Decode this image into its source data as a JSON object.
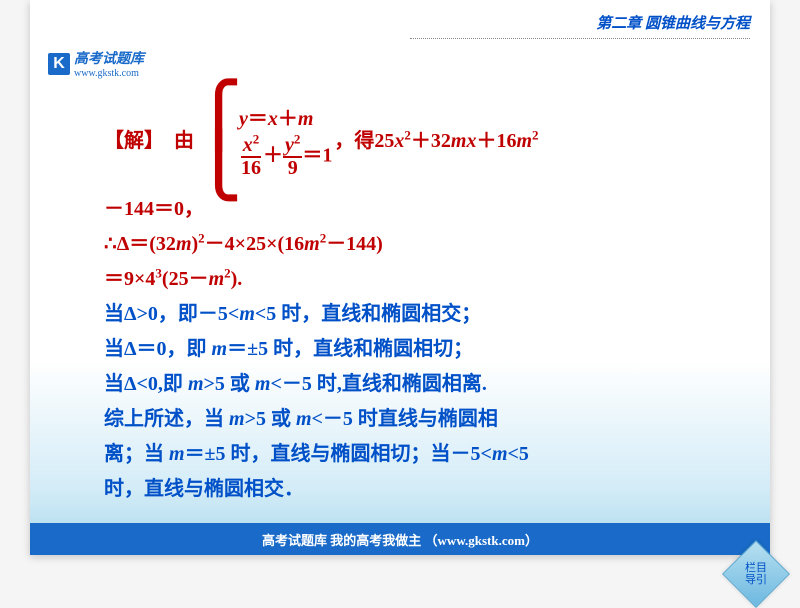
{
  "chapter": {
    "title": "第二章  圆锥曲线与方程",
    "color": "#0050c8"
  },
  "logo": {
    "letter": "K",
    "cn": "高考试题库",
    "url": "www.gkstk.com",
    "color": "#1a6bc9"
  },
  "footer": {
    "text": "高考试题库 我的高考我做主 （www.gkstk.com）",
    "bg": "#1a6bc9"
  },
  "nav": {
    "line1": "栏目",
    "line2": "导引"
  },
  "solution": {
    "label": "【解】",
    "you": "  由",
    "sys_line1_pre": "y＝x＋m",
    "sys_frac1_num": "x",
    "sys_frac1_den": "16",
    "sys_plus": "＋",
    "sys_frac2_num": "y",
    "sys_frac2_den": "9",
    "sys_eq1": "＝1",
    "de": "，得 ",
    "rhs1a": "25",
    "rhs1b": "x",
    "rhs1c": "＋32",
    "rhs1d": "mx",
    "rhs1e": "＋16",
    "rhs1f": "m",
    "line2": "－144＝0，",
    "line3a": "∴Δ＝(32",
    "line3b": "m",
    "line3c": ")",
    "line3d": "－4×25×(16",
    "line3e": "m",
    "line3f": "－144)",
    "line4a": "＝9×4",
    "line4b": "(25－",
    "line4c": "m",
    "line4d": ").",
    "line5a": "当Δ>0，即－5<",
    "line5m": "m",
    "line5b": "<5 时，直线和椭圆相交；",
    "line6a": "当Δ＝0，即 ",
    "line6m": "m",
    "line6b": "＝±5 时，直线和椭圆相切；",
    "line7a": "当Δ<0,即 ",
    "line7m1": "m",
    "line7b": ">5 或 ",
    "line7m2": "m",
    "line7c": "<－5 时,直线和椭圆相离.",
    "line8a": "综上所述，当 ",
    "line8m1": "m",
    "line8b": ">5 或 ",
    "line8m2": "m",
    "line8c": "<－5 时直线与椭圆相",
    "line9a": "离；当 ",
    "line9m1": "m",
    "line9b": "＝±5 时，直线与椭圆相切；当－5<",
    "line9m2": "m",
    "line9c": "<5",
    "line10": "时，直线与椭圆相交．"
  },
  "colors": {
    "red": "#c00000",
    "blue": "#0050c8"
  }
}
